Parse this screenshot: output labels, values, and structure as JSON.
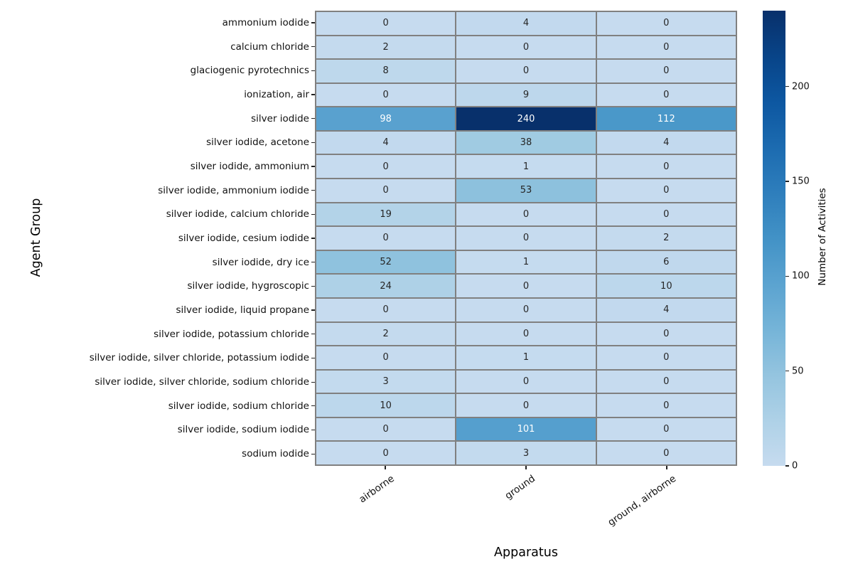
{
  "chart_data": {
    "type": "heatmap",
    "xlabel": "Apparatus",
    "ylabel": "Agent Group",
    "colorbar_label": "Number of Activities",
    "columns": [
      "airborne",
      "ground",
      "ground, airborne"
    ],
    "rows": [
      "ammonium iodide",
      "calcium chloride",
      "glaciogenic pyrotechnics",
      "ionization, air",
      "silver iodide",
      "silver iodide, acetone",
      "silver iodide, ammonium",
      "silver iodide, ammonium iodide",
      "silver iodide, calcium chloride",
      "silver iodide, cesium iodide",
      "silver iodide, dry ice",
      "silver iodide, hygroscopic",
      "silver iodide, liquid propane",
      "silver iodide, potassium chloride",
      "silver iodide, silver chloride, potassium iodide",
      "silver iodide, silver chloride, sodium chloride",
      "silver iodide, sodium chloride",
      "silver iodide, sodium iodide",
      "sodium iodide"
    ],
    "values": [
      [
        0,
        4,
        0
      ],
      [
        2,
        0,
        0
      ],
      [
        8,
        0,
        0
      ],
      [
        0,
        9,
        0
      ],
      [
        98,
        240,
        112
      ],
      [
        4,
        38,
        4
      ],
      [
        0,
        1,
        0
      ],
      [
        0,
        53,
        0
      ],
      [
        19,
        0,
        0
      ],
      [
        0,
        0,
        2
      ],
      [
        52,
        1,
        6
      ],
      [
        24,
        0,
        10
      ],
      [
        0,
        0,
        4
      ],
      [
        2,
        0,
        0
      ],
      [
        0,
        1,
        0
      ],
      [
        3,
        0,
        0
      ],
      [
        10,
        0,
        0
      ],
      [
        0,
        101,
        0
      ],
      [
        0,
        3,
        0
      ]
    ],
    "vmin": 0,
    "vmax": 240,
    "colorbar_ticks": [
      0,
      50,
      100,
      150,
      200
    ],
    "colormap": "Blues",
    "colormap_anchors": [
      "#f7fbff",
      "#deebf7",
      "#c6dbef",
      "#9ecae1",
      "#6baed6",
      "#4292c6",
      "#2171b5",
      "#08519c",
      "#08306b"
    ],
    "color_range": [
      0.25,
      1.0
    ],
    "grid_line_color": "#808080",
    "annotation_dark_color": "#262626",
    "annotation_light_color": "#ffffff",
    "background_color": "#ffffff",
    "legend_position": "right",
    "grid": "on"
  }
}
